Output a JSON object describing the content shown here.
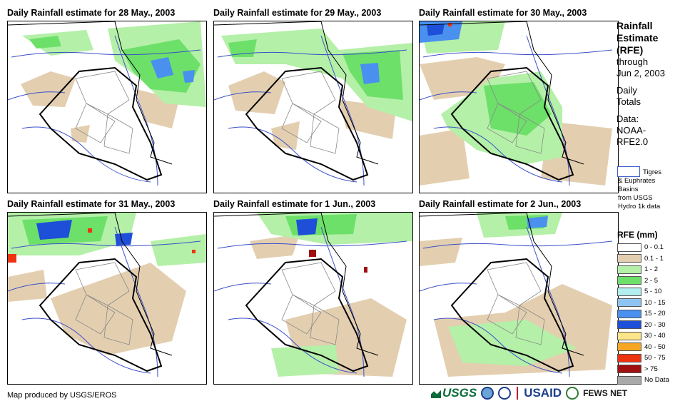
{
  "panels": [
    {
      "title": "Daily Rainfall estimate for 28 May., 2003"
    },
    {
      "title": "Daily Rainfall estimate for 29 May., 2003"
    },
    {
      "title": "Daily Rainfall estimate for 30 May., 2003"
    },
    {
      "title": "Daily Rainfall estimate for 31 May., 2003"
    },
    {
      "title": "Daily Rainfall estimate for 1 Jun., 2003"
    },
    {
      "title": "Daily Rainfall estimate for 2 Jun., 2003"
    }
  ],
  "title_block": {
    "line1": "Rainfall",
    "line2": "Estimate",
    "line3": "(RFE)",
    "line4": "through",
    "line5": "Jun 2, 2003",
    "line6": "Daily",
    "line7": "Totals",
    "line8": "Data:",
    "line9": "NOAA-",
    "line10": "RFE2.0"
  },
  "basin_note": {
    "line1": "Tigres",
    "line2": "& Euphrates",
    "line3": "Basins",
    "line4": "from USGS",
    "line5": "Hydro 1k data"
  },
  "legend": {
    "title": "RFE (mm)",
    "items": [
      {
        "label": "0 - 0.1",
        "color": "#ffffff"
      },
      {
        "label": "0.1 - 1",
        "color": "#e3cfb0"
      },
      {
        "label": "1 - 2",
        "color": "#b4f0a8"
      },
      {
        "label": "2 - 5",
        "color": "#6de06a"
      },
      {
        "label": "5 - 10",
        "color": "#b3eef0"
      },
      {
        "label": "10 - 15",
        "color": "#8ec4f2"
      },
      {
        "label": "15 - 20",
        "color": "#4a90ee"
      },
      {
        "label": "20 - 30",
        "color": "#1e4fd8"
      },
      {
        "label": "30 - 40",
        "color": "#fde58a"
      },
      {
        "label": "40 - 50",
        "color": "#f5a623"
      },
      {
        "label": "50 - 75",
        "color": "#ee3311"
      },
      {
        "label": "> 75",
        "color": "#a01010"
      },
      {
        "label": "No Data",
        "color": "#a9a9a9"
      }
    ]
  },
  "footer": "Map produced by USGS/EROS",
  "logos": {
    "usgs": "USGS",
    "usaid": "USAID",
    "fews": "FEWS NET"
  }
}
